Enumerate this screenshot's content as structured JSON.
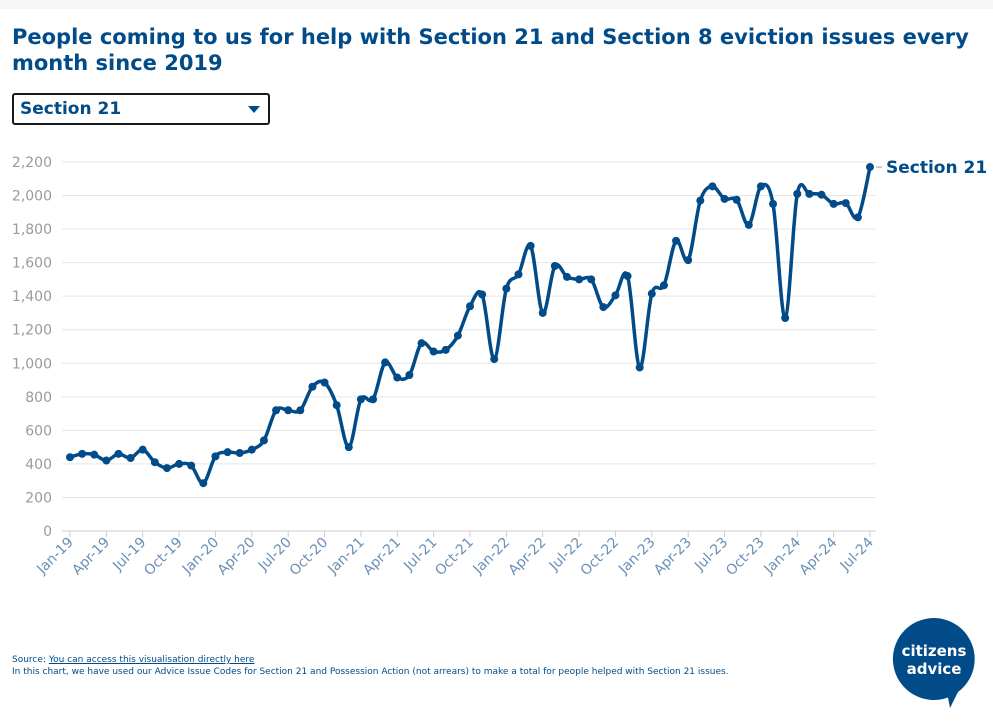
{
  "header": {
    "title": "People coming to us for help with Section 21 and Section 8 eviction issues every month since 2019"
  },
  "dropdown": {
    "selected": "Section 21"
  },
  "chart_data": {
    "type": "line",
    "title": "People coming to us for help with Section 21 and Section 8 eviction issues every month since 2019",
    "xlabel": "",
    "ylabel": "",
    "ylim": [
      0,
      2200
    ],
    "yticks": [
      0,
      200,
      400,
      600,
      800,
      1000,
      1200,
      1400,
      1600,
      1800,
      2000,
      2200
    ],
    "ytick_labels": [
      "0",
      "200",
      "400",
      "600",
      "800",
      "1,000",
      "1,200",
      "1,400",
      "1,600",
      "1,800",
      "2,000",
      "2,200"
    ],
    "xtick_labels": [
      "Jan-19",
      "Apr-19",
      "Jul-19",
      "Oct-19",
      "Jan-20",
      "Apr-20",
      "Jul-20",
      "Oct-20",
      "Jan-21",
      "Apr-21",
      "Jul-21",
      "Oct-21",
      "Jan-22",
      "Apr-22",
      "Jul-22",
      "Oct-22",
      "Jan-23",
      "Apr-23",
      "Jul-23",
      "Oct-23",
      "Jan-24",
      "Apr-24",
      "Jul-24"
    ],
    "grid": true,
    "legend": "end-of-line label",
    "series": [
      {
        "name": "Section 21",
        "color": "#004b88",
        "values": [
          440,
          460,
          455,
          420,
          460,
          435,
          485,
          410,
          375,
          400,
          390,
          285,
          445,
          470,
          465,
          485,
          540,
          720,
          720,
          720,
          860,
          885,
          750,
          500,
          785,
          785,
          1005,
          915,
          930,
          1120,
          1070,
          1080,
          1165,
          1340,
          1410,
          1025,
          1445,
          1530,
          1700,
          1300,
          1580,
          1515,
          1500,
          1500,
          1335,
          1405,
          1520,
          975,
          1415,
          1465,
          1730,
          1615,
          1970,
          2055,
          1980,
          1975,
          1825,
          2055,
          1950,
          1270,
          2010,
          2010,
          2005,
          1950,
          1955,
          1870,
          2170
        ]
      }
    ]
  },
  "source": {
    "label": "Source:",
    "link_text": "You can access this visualisation directly here",
    "note": "In this chart, we have used our Advice Issue Codes for Section 21 and Possession Action (not arrears) to make a total for people helped with Section 21 issues."
  },
  "logo": {
    "line1": "citizens",
    "line2": "advice",
    "color": "#004b88"
  }
}
